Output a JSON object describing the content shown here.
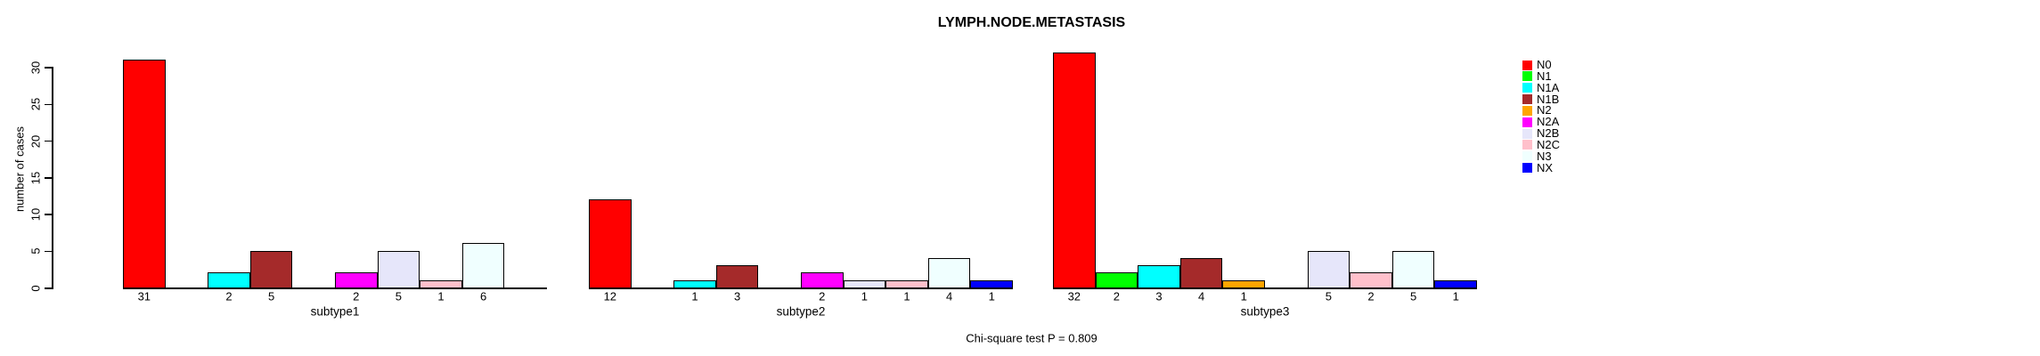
{
  "title": "LYMPH.NODE.METASTASIS",
  "footer": "Chi-square test P = 0.809",
  "chart_data": {
    "type": "bar",
    "title": "LYMPH.NODE.METASTASIS",
    "xlabel": "",
    "ylabel": "number of cases",
    "ylim": [
      0,
      32
    ],
    "yticks": [
      0,
      5,
      10,
      15,
      20,
      25,
      30
    ],
    "grid": false,
    "legend_position": "right",
    "bar_value_labels_under_bars": true,
    "zero_values_drawn_as_gaps": true,
    "categories": [
      "N0",
      "N1",
      "N1A",
      "N1B",
      "N2",
      "N2A",
      "N2B",
      "N2C",
      "N3",
      "NX"
    ],
    "palette": [
      "#FF0000",
      "#00FF00",
      "#00FFFF",
      "#A52A2A",
      "#FFA500",
      "#FF00FF",
      "#E6E6FA",
      "#FFC0CB",
      "#F0FFFF",
      "#0000FF"
    ],
    "groups": [
      {
        "label": "subtype1",
        "values": [
          31,
          0,
          2,
          5,
          0,
          2,
          5,
          1,
          6,
          0
        ]
      },
      {
        "label": "subtype2",
        "values": [
          12,
          0,
          1,
          3,
          0,
          2,
          1,
          1,
          4,
          1
        ]
      },
      {
        "label": "subtype3",
        "values": [
          32,
          2,
          3,
          4,
          1,
          0,
          5,
          2,
          5,
          1
        ]
      }
    ],
    "legend": [
      {
        "label": "N0",
        "color": "#FF0000"
      },
      {
        "label": "N1",
        "color": "#00FF00"
      },
      {
        "label": "N1A",
        "color": "#00FFFF"
      },
      {
        "label": "N1B",
        "color": "#A52A2A"
      },
      {
        "label": "N2",
        "color": "#FFA500"
      },
      {
        "label": "N2A",
        "color": "#FF00FF"
      },
      {
        "label": "N2B",
        "color": "#E6E6FA"
      },
      {
        "label": "N2C",
        "color": "#FFC0CB"
      },
      {
        "label": "N3",
        "color": "#F0FFFF"
      },
      {
        "label": "NX",
        "color": "#0000FF"
      }
    ],
    "annotation": "Chi-square test P = 0.809"
  }
}
